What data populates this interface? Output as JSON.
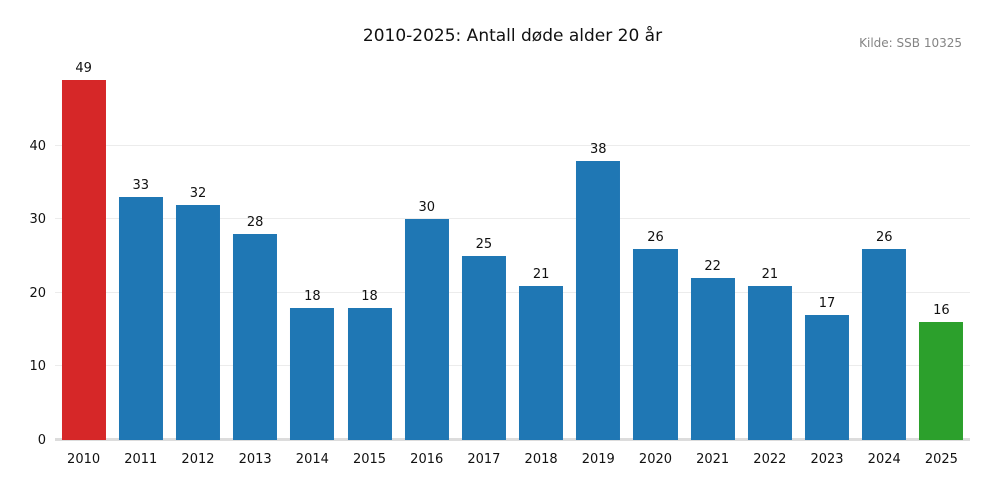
{
  "header": {
    "title": "2010-2025: Antall døde alder 20 år",
    "source_note": "Kilde: SSB 10325"
  },
  "chart_data": {
    "type": "bar",
    "title": "2010-2025: Antall døde alder 20 år",
    "source_note": "Kilde: SSB 10325",
    "categories": [
      "2010",
      "2011",
      "2012",
      "2013",
      "2014",
      "2015",
      "2016",
      "2017",
      "2018",
      "2019",
      "2020",
      "2021",
      "2022",
      "2023",
      "2024",
      "2025"
    ],
    "values": [
      49,
      33,
      32,
      28,
      18,
      18,
      30,
      25,
      21,
      38,
      26,
      22,
      21,
      17,
      26,
      16
    ],
    "bar_colors": [
      "#d62728",
      "#1f77b4",
      "#1f77b4",
      "#1f77b4",
      "#1f77b4",
      "#1f77b4",
      "#1f77b4",
      "#1f77b4",
      "#1f77b4",
      "#1f77b4",
      "#1f77b4",
      "#1f77b4",
      "#1f77b4",
      "#1f77b4",
      "#1f77b4",
      "#2ca02c"
    ],
    "value_labels": [
      49,
      33,
      32,
      28,
      18,
      18,
      30,
      25,
      21,
      38,
      26,
      22,
      21,
      17,
      26,
      16
    ],
    "yticks": [
      0,
      10,
      20,
      30,
      40
    ],
    "ylim": [
      0,
      50.6
    ],
    "xlabel": "",
    "ylabel": "",
    "grid": "horizontal",
    "legend": "none",
    "colors": {
      "default_bar": "#1f77b4",
      "first_bar_highlight": "#d62728",
      "last_bar_highlight": "#2ca02c",
      "gridline": "#ececec",
      "baseline": "#dcdcdc",
      "text": "#111111",
      "source_text": "#848484",
      "background": "#ffffff"
    }
  }
}
